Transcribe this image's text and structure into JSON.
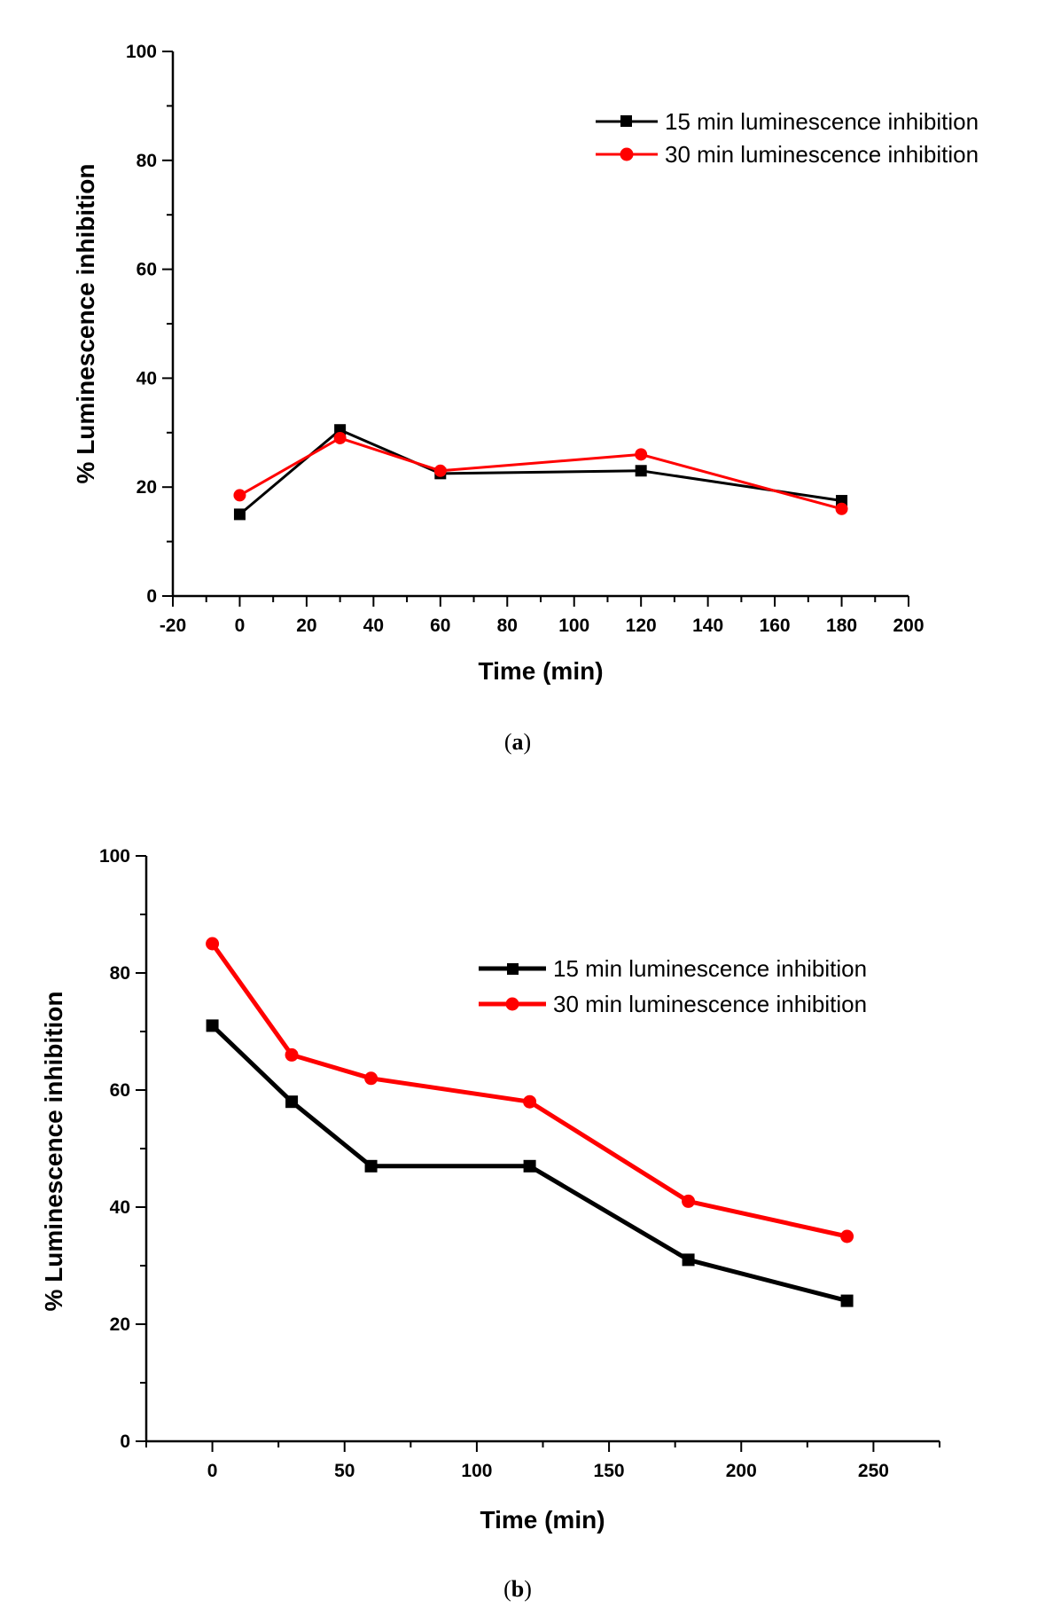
{
  "chart_data": [
    {
      "type": "line",
      "panel_label": "a",
      "xlabel": "Time (min)",
      "ylabel": "% Luminescence inhibition",
      "xlim": [
        -20,
        200
      ],
      "ylim": [
        0,
        100
      ],
      "x_ticks": [
        -20,
        0,
        20,
        40,
        60,
        80,
        100,
        120,
        140,
        160,
        180,
        200
      ],
      "y_ticks": [
        0,
        20,
        40,
        60,
        80,
        100
      ],
      "legend_position": "top-right",
      "grid": false,
      "series": [
        {
          "name": "15 min luminescence inhibition",
          "color": "#000000",
          "marker": "square",
          "x": [
            0,
            30,
            60,
            120,
            180
          ],
          "y": [
            15,
            30.5,
            22.5,
            23,
            17.5
          ]
        },
        {
          "name": "30 min luminescence inhibition",
          "color": "#ff0000",
          "marker": "circle",
          "x": [
            0,
            30,
            60,
            120,
            180
          ],
          "y": [
            18.5,
            29,
            23,
            26,
            16
          ]
        }
      ]
    },
    {
      "type": "line",
      "panel_label": "b",
      "xlabel": "Time (min)",
      "ylabel": "% Luminescence inhibition",
      "xlim": [
        -25,
        275
      ],
      "ylim": [
        0,
        100
      ],
      "x_ticks": [
        0,
        50,
        100,
        150,
        200,
        250
      ],
      "y_ticks": [
        0,
        20,
        40,
        60,
        80,
        100
      ],
      "legend_position": "top-right",
      "grid": false,
      "series": [
        {
          "name": "15 min luminescence inhibition",
          "color": "#000000",
          "marker": "square",
          "x": [
            0,
            30,
            60,
            120,
            180,
            240
          ],
          "y": [
            71,
            58,
            47,
            47,
            31,
            24
          ]
        },
        {
          "name": "30 min luminescence inhibition",
          "color": "#ff0000",
          "marker": "circle",
          "x": [
            0,
            30,
            60,
            120,
            180,
            240
          ],
          "y": [
            85,
            66,
            62,
            58,
            41,
            35
          ]
        }
      ]
    }
  ]
}
